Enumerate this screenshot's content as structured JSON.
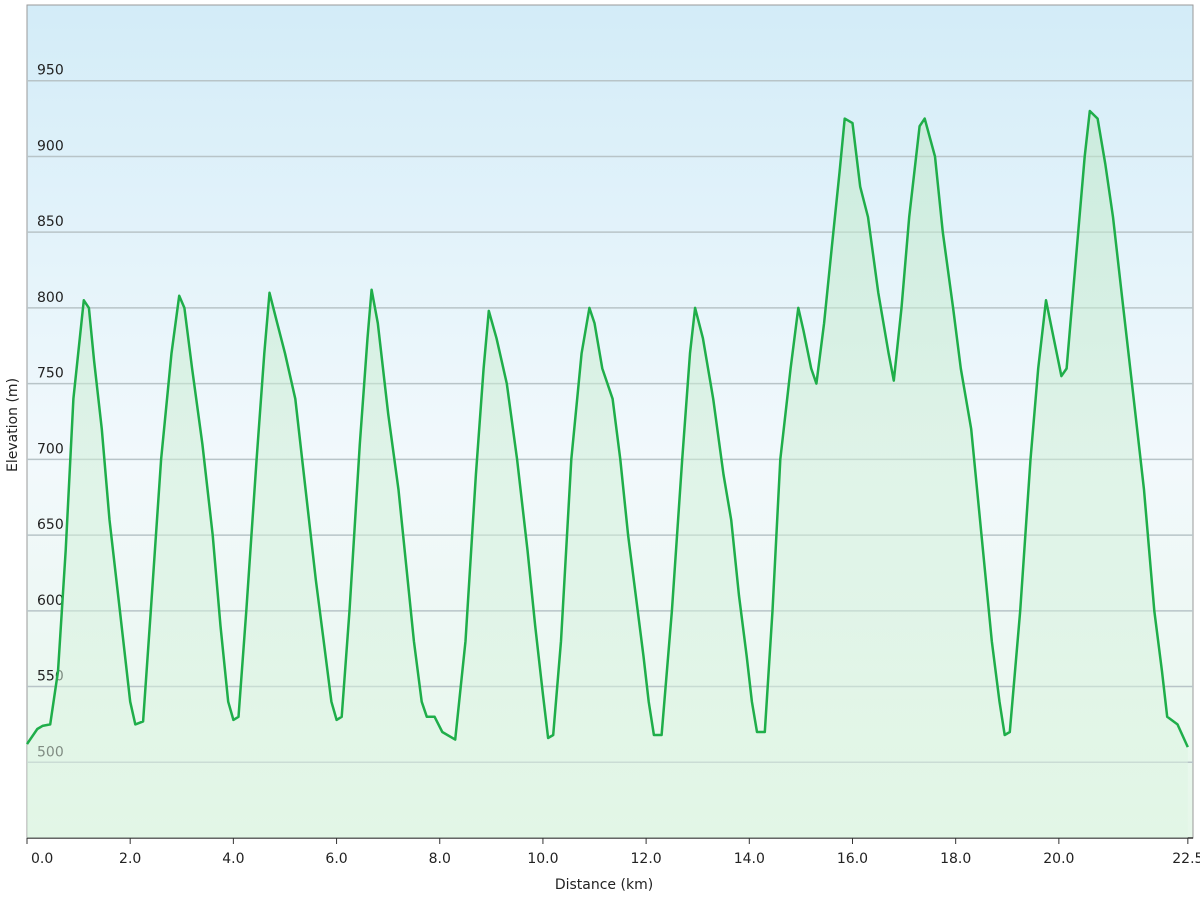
{
  "chart_data": {
    "type": "line",
    "x_label": "Distance  (km)",
    "y_label": "Elevation (m)",
    "xlim": [
      0,
      22.6
    ],
    "ylim": [
      450,
      1000
    ],
    "xticks": [
      {
        "value": 0,
        "label": "0.0"
      },
      {
        "value": 2,
        "label": "2.0"
      },
      {
        "value": 4,
        "label": "4.0"
      },
      {
        "value": 6,
        "label": "6.0"
      },
      {
        "value": 8,
        "label": "8.0"
      },
      {
        "value": 10,
        "label": "10.0"
      },
      {
        "value": 12,
        "label": "12.0"
      },
      {
        "value": 14,
        "label": "14.0"
      },
      {
        "value": 16,
        "label": "16.0"
      },
      {
        "value": 18,
        "label": "18.0"
      },
      {
        "value": 20,
        "label": "20.0"
      },
      {
        "value": 22.5,
        "label": "22.5"
      }
    ],
    "yticks": [
      500,
      550,
      600,
      650,
      700,
      750,
      800,
      850,
      900,
      950
    ],
    "grid": true,
    "x": [
      0,
      0.2,
      0.3,
      0.45,
      0.6,
      0.75,
      0.9,
      1.1,
      1.2,
      1.3,
      1.45,
      1.6,
      1.8,
      2.0,
      2.1,
      2.25,
      2.4,
      2.6,
      2.8,
      2.95,
      3.05,
      3.2,
      3.4,
      3.6,
      3.75,
      3.9,
      4.0,
      4.1,
      4.25,
      4.45,
      4.6,
      4.7,
      4.85,
      5.0,
      5.2,
      5.4,
      5.6,
      5.75,
      5.9,
      6.0,
      6.1,
      6.25,
      6.45,
      6.6,
      6.68,
      6.8,
      7.0,
      7.2,
      7.35,
      7.5,
      7.65,
      7.75,
      7.9,
      8.05,
      8.3,
      8.5,
      8.7,
      8.85,
      8.95,
      9.1,
      9.3,
      9.5,
      9.7,
      9.85,
      10.0,
      10.1,
      10.2,
      10.35,
      10.55,
      10.75,
      10.9,
      11.0,
      11.15,
      11.35,
      11.5,
      11.65,
      11.8,
      11.95,
      12.05,
      12.15,
      12.3,
      12.5,
      12.7,
      12.85,
      12.95,
      13.1,
      13.3,
      13.5,
      13.65,
      13.8,
      13.95,
      14.05,
      14.15,
      14.3,
      14.45,
      14.6,
      14.8,
      14.95,
      15.05,
      15.2,
      15.3,
      15.45,
      15.6,
      15.75,
      15.85,
      16.0,
      16.15,
      16.3,
      16.5,
      16.7,
      16.8,
      16.95,
      17.1,
      17.3,
      17.4,
      17.6,
      17.75,
      17.95,
      18.1,
      18.3,
      18.5,
      18.7,
      18.85,
      18.95,
      19.05,
      19.25,
      19.45,
      19.6,
      19.75,
      19.9,
      20.05,
      20.15,
      20.35,
      20.5,
      20.6,
      20.75,
      20.9,
      21.05,
      21.25,
      21.45,
      21.65,
      21.85,
      22.0,
      22.1,
      22.3,
      22.5
    ],
    "series": [
      {
        "color": "#1fae4a",
        "values": [
          512,
          522,
          524,
          525,
          560,
          640,
          740,
          805,
          800,
          765,
          720,
          660,
          600,
          540,
          525,
          527,
          600,
          700,
          770,
          808,
          800,
          760,
          710,
          650,
          590,
          540,
          528,
          530,
          600,
          700,
          770,
          810,
          790,
          770,
          740,
          680,
          620,
          580,
          540,
          528,
          530,
          600,
          710,
          780,
          812,
          790,
          730,
          680,
          630,
          580,
          540,
          530,
          530,
          520,
          515,
          580,
          690,
          760,
          798,
          780,
          750,
          700,
          640,
          590,
          545,
          516,
          518,
          580,
          700,
          770,
          800,
          790,
          760,
          740,
          700,
          650,
          610,
          570,
          540,
          518,
          518,
          600,
          700,
          770,
          800,
          780,
          740,
          690,
          660,
          610,
          570,
          540,
          520,
          520,
          600,
          700,
          760,
          800,
          785,
          760,
          750,
          790,
          840,
          890,
          925,
          922,
          880,
          860,
          810,
          770,
          752,
          800,
          860,
          920,
          925,
          900,
          850,
          800,
          760,
          720,
          650,
          580,
          540,
          518,
          520,
          600,
          700,
          760,
          805,
          780,
          755,
          760,
          840,
          900,
          930,
          925,
          895,
          860,
          800,
          740,
          680,
          600,
          560,
          530,
          525,
          510
        ]
      }
    ]
  }
}
